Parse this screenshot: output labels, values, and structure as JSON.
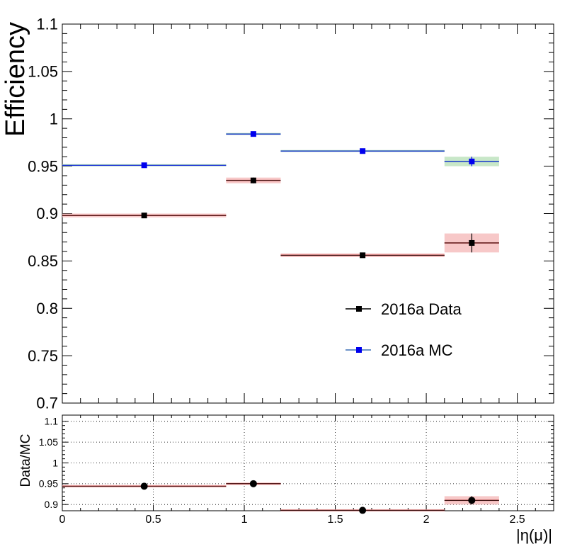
{
  "chart_data": [
    {
      "panel": "main",
      "type": "scatter",
      "title": "",
      "xlabel": "",
      "ylabel": "Efficiency",
      "xlim": [
        0,
        2.7
      ],
      "ylim": [
        0.7,
        1.1
      ],
      "yticks": [
        "0.7",
        "0.75",
        "0.8",
        "0.85",
        "0.9",
        "0.95",
        "1",
        "1.05",
        "1.1"
      ],
      "grid": false,
      "legend_position": "lower-right",
      "series": [
        {
          "name": "2016a Data",
          "color": "#000000",
          "marker": "square",
          "band_color": "#f4b6b6",
          "points": [
            {
              "x": 0.45,
              "xlo": 0.0,
              "xhi": 0.9,
              "y": 0.898,
              "err": 0.002
            },
            {
              "x": 1.05,
              "xlo": 0.9,
              "xhi": 1.2,
              "y": 0.935,
              "err": 0.003
            },
            {
              "x": 1.65,
              "xlo": 1.2,
              "xhi": 2.1,
              "y": 0.856,
              "err": 0.002
            },
            {
              "x": 2.25,
              "xlo": 2.1,
              "xhi": 2.4,
              "y": 0.869,
              "err": 0.01
            }
          ]
        },
        {
          "name": "2016a MC",
          "color": "#0000ee",
          "line_color": "#3b6fb6",
          "marker": "square",
          "band_color": "#b5dfb5",
          "points": [
            {
              "x": 0.45,
              "xlo": 0.0,
              "xhi": 0.9,
              "y": 0.951,
              "err": 0.001
            },
            {
              "x": 1.05,
              "xlo": 0.9,
              "xhi": 1.2,
              "y": 0.984,
              "err": 0.001
            },
            {
              "x": 1.65,
              "xlo": 1.2,
              "xhi": 2.1,
              "y": 0.966,
              "err": 0.001
            },
            {
              "x": 2.25,
              "xlo": 2.1,
              "xhi": 2.4,
              "y": 0.955,
              "err": 0.005
            }
          ]
        }
      ]
    },
    {
      "panel": "ratio",
      "type": "scatter",
      "title": "",
      "xlabel": "|η(μ)|",
      "ylabel": "Data/MC",
      "xlim": [
        0,
        2.7
      ],
      "ylim": [
        0.885,
        1.115
      ],
      "xticks": [
        "0",
        "0.5",
        "1",
        "1.5",
        "2",
        "2.5"
      ],
      "yticks": [
        "0.9",
        "0.95",
        "1",
        "1.05",
        "1.1"
      ],
      "grid": true,
      "series": [
        {
          "name": "",
          "color": "#000000",
          "band_color": "#f4b6b6",
          "marker": "circle",
          "points": [
            {
              "x": 0.45,
              "xlo": 0.0,
              "xhi": 0.9,
              "y": 0.944,
              "err": 0.003
            },
            {
              "x": 1.05,
              "xlo": 0.9,
              "xhi": 1.2,
              "y": 0.95,
              "err": 0.003
            },
            {
              "x": 1.65,
              "xlo": 1.2,
              "xhi": 2.1,
              "y": 0.886,
              "err": 0.002
            },
            {
              "x": 2.25,
              "xlo": 2.1,
              "xhi": 2.4,
              "y": 0.91,
              "err": 0.01
            }
          ]
        }
      ]
    }
  ]
}
